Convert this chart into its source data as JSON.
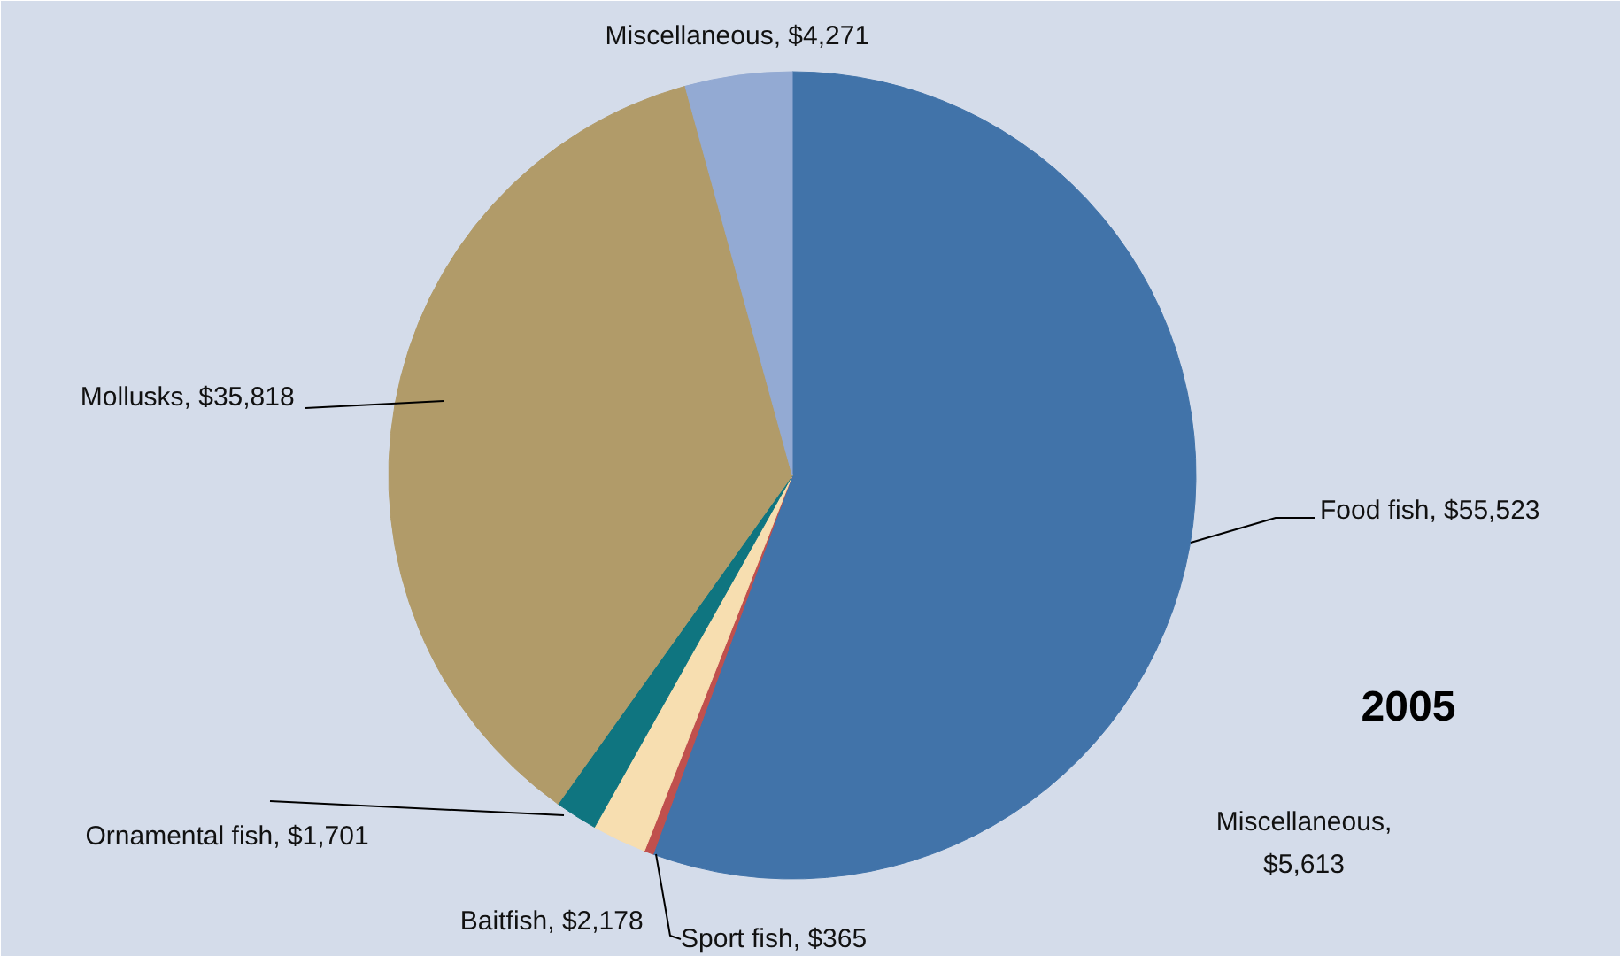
{
  "chart_data": [
    {
      "type": "pie",
      "categories": [
        "Food fish",
        "Sport fish",
        "Baitfish",
        "Ornamental fish",
        "Mollusks",
        "Miscellaneous"
      ],
      "values": [
        55523,
        365,
        2178,
        1701,
        35818,
        4271
      ],
      "value_labels": [
        "$55,523",
        "$365",
        "$2,178",
        "$1,701",
        "$35,818",
        "$4,271"
      ],
      "colors": [
        "#4173a9",
        "#c0504d",
        "#f7deb0",
        "#0f7580",
        "#b19b69",
        "#93aad3"
      ]
    },
    {
      "type": "other",
      "title": "2005",
      "annotations": [
        "Miscellaneous,\n$5,613"
      ]
    }
  ]
}
